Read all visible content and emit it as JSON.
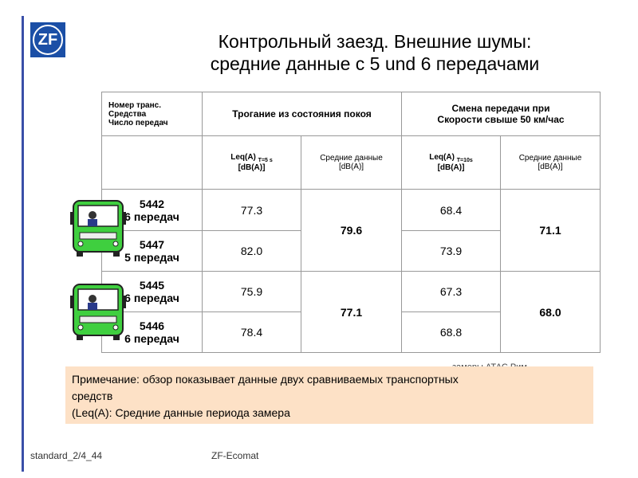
{
  "header": {
    "logo": "ZF",
    "title": [
      "Контрольный заезд. Внешние шумы:",
      "средние данные с 5 und 6 передачами"
    ]
  },
  "table": {
    "head": {
      "vehicle": [
        "Номер транс.",
        "Средства",
        "Число передач"
      ],
      "start": "Трогание  из состояния покоя",
      "shift": [
        "Смена передачи при",
        "Скорости свыше 50 км/час"
      ],
      "sub": [
        {
          "main": "Leq(A)",
          "sub": "T=5 s",
          "unit": "[dB(A)]"
        },
        {
          "main": "Средние  данные",
          "unit": "[dB(A)]"
        },
        {
          "main": "Leq(A)",
          "sub": "T=10s",
          "unit": "[dB(A)]"
        },
        {
          "main": "Средние  данные",
          "unit": "[dB(A)]"
        }
      ]
    },
    "groups": [
      {
        "start_avg": "79.6",
        "shift_avg": "71.1",
        "rows": [
          {
            "vehicle": "5442",
            "gears": "6 передач",
            "start": "77.3",
            "shift": "68.4"
          },
          {
            "vehicle": "5447",
            "gears": "5 передач",
            "start": "82.0",
            "shift": "73.9"
          }
        ]
      },
      {
        "start_avg": "77.1",
        "shift_avg": "68.0",
        "rows": [
          {
            "vehicle": "5445",
            "gears": "6 передач",
            "start": "75.9",
            "shift": "67.3"
          },
          {
            "vehicle": "5446",
            "gears": "6 передач",
            "start": "78.4",
            "shift": "68.8"
          }
        ]
      }
    ]
  },
  "source": "замеры АТАС Рим",
  "note": [
    "Примечание:  обзор показывает данные двух сравниваемых  транспортных",
    "средств",
    "(Leq(A): Средние  данные  периода  замера"
  ],
  "footer": {
    "left": "standard_2/4_44",
    "center": "ZF-Ecomat"
  }
}
